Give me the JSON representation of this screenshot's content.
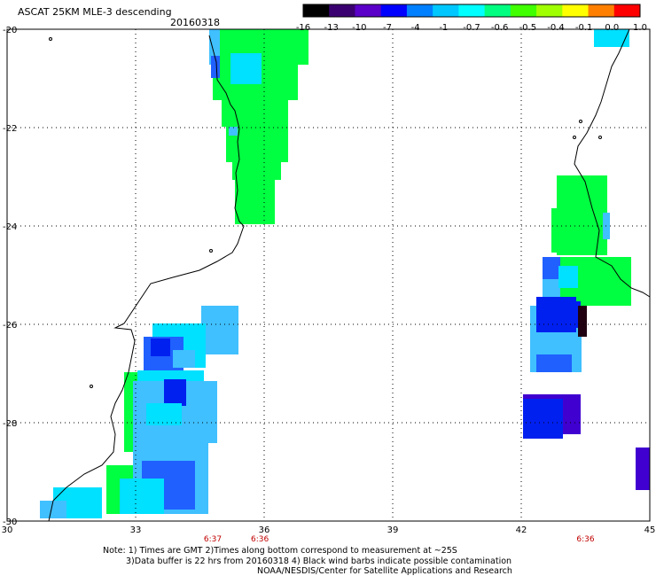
{
  "header": {
    "title": "ASCAT 25KM MLE-3 descending",
    "date": "20160318"
  },
  "colorbar": {
    "labels": [
      "-16",
      "-13",
      "-10",
      "-7",
      "-4",
      "-1",
      "-0.7",
      "-0.6",
      "-0.5",
      "-0.4",
      "-0.1",
      "0.0",
      "1.0"
    ],
    "colors": [
      "#000000",
      "#3a0070",
      "#5a00c8",
      "#0000ff",
      "#0080ff",
      "#00c8ff",
      "#00ffff",
      "#00ff80",
      "#40ff00",
      "#a0ff00",
      "#ffff00",
      "#ff8000",
      "#ff0000"
    ]
  },
  "axes": {
    "lon_ticks": [
      "30",
      "33",
      "36",
      "39",
      "42",
      "45"
    ],
    "lat_ticks": [
      "-20",
      "-22",
      "-24",
      "-26",
      "-28",
      "-30"
    ],
    "lon_range": [
      30,
      45
    ],
    "lat_range": [
      -30,
      -20
    ]
  },
  "times": [
    {
      "label": "6:37",
      "lon": 34.8
    },
    {
      "label": "6:36",
      "lon": 35.9
    },
    {
      "label": "6:36",
      "lon": 43.5
    }
  ],
  "notes": {
    "line1": "Note: 1) Times are GMT 2)Times along bottom correspond to measurement at ~25S",
    "line2": "3)Data buffer is 22 hrs from 20160318 4) Black wind barbs indicate possible contamination",
    "line3": "NOAA/NESDIS/Center for Satellite Applications and Research"
  },
  "colors": {
    "green": "#00ff40",
    "cyan": "#00e0ff",
    "lightblue": "#40c0ff",
    "blue": "#2060ff",
    "darkblue": "#0020f0",
    "purple": "#4000d0",
    "black": "#200010",
    "time_label": "#c00000"
  }
}
